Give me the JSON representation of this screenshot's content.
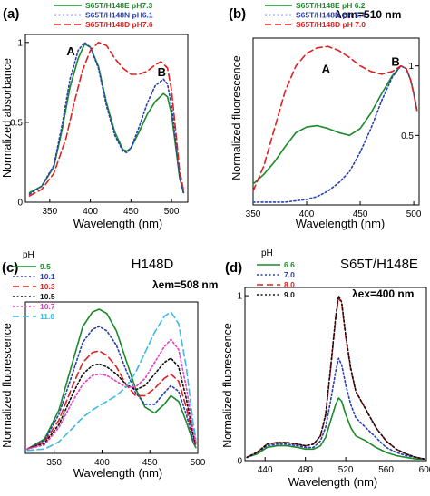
{
  "chart_data": [
    {
      "panel": "(a)",
      "type": "line",
      "ylabel": "Normalized absorbance",
      "xlabel": "Wavelength (nm)",
      "xlim": [
        320,
        520
      ],
      "ylim": [
        0,
        1.05
      ],
      "xticks": [
        350,
        400,
        450,
        500
      ],
      "yticks": [
        0,
        0.5,
        1
      ],
      "ytick_labels": [
        "0",
        "0.5",
        "1"
      ],
      "legend": "top",
      "annotations": [
        {
          "text": "A",
          "x": 376,
          "y": 0.92
        },
        {
          "text": "B",
          "x": 488,
          "y": 0.79
        }
      ],
      "series": [
        {
          "name": "S65T/H148E pH7.3",
          "color": "#1a8a2a",
          "dash": "solid",
          "x": [
            325,
            340,
            355,
            365,
            375,
            385,
            393,
            400,
            410,
            420,
            430,
            440,
            445,
            450,
            460,
            470,
            480,
            490,
            495,
            500,
            505,
            510,
            515
          ],
          "y": [
            0.06,
            0.1,
            0.22,
            0.45,
            0.72,
            0.9,
            0.99,
            0.97,
            0.85,
            0.62,
            0.44,
            0.33,
            0.32,
            0.34,
            0.44,
            0.55,
            0.63,
            0.68,
            0.66,
            0.55,
            0.35,
            0.15,
            0.06
          ]
        },
        {
          "name": "S65T/H148N pH6.1",
          "color": "#2a3fb0",
          "dash": "dot",
          "x": [
            325,
            340,
            355,
            365,
            375,
            385,
            393,
            400,
            410,
            420,
            430,
            440,
            445,
            450,
            460,
            470,
            480,
            490,
            495,
            500,
            505,
            510,
            515
          ],
          "y": [
            0.05,
            0.1,
            0.23,
            0.48,
            0.77,
            0.95,
            1.0,
            0.97,
            0.84,
            0.6,
            0.42,
            0.32,
            0.31,
            0.34,
            0.47,
            0.62,
            0.73,
            0.77,
            0.74,
            0.6,
            0.38,
            0.16,
            0.05
          ]
        },
        {
          "name": "S65T/H148D pH7.6",
          "color": "#e02020",
          "dash": "dash",
          "x": [
            325,
            340,
            355,
            370,
            380,
            390,
            400,
            410,
            420,
            430,
            440,
            450,
            460,
            470,
            480,
            487,
            495,
            500,
            505,
            510,
            515
          ],
          "y": [
            0.04,
            0.08,
            0.18,
            0.4,
            0.62,
            0.82,
            0.95,
            1.0,
            0.98,
            0.9,
            0.84,
            0.8,
            0.8,
            0.82,
            0.86,
            0.88,
            0.84,
            0.7,
            0.45,
            0.2,
            0.07
          ]
        }
      ]
    },
    {
      "panel": "(b)",
      "type": "line",
      "ylabel": "Normalized fluorescence",
      "xlabel": "Wavelength (nm)",
      "xlim": [
        350,
        505
      ],
      "ylim": [
        0,
        1.2
      ],
      "xticks": [
        350,
        400,
        450,
        500
      ],
      "yticks": [
        0.5,
        1
      ],
      "ytick_labels": [
        "0.5",
        "1"
      ],
      "legend": "top",
      "inset_label": "λem=510 nm",
      "annotations": [
        {
          "text": "A",
          "x": 418,
          "y": 0.95
        },
        {
          "text": "B",
          "x": 483,
          "y": 1.0
        }
      ],
      "series": [
        {
          "name": "S65T/H148E pH 6.2",
          "color": "#1a8a2a",
          "dash": "solid",
          "x": [
            350,
            360,
            370,
            380,
            390,
            400,
            410,
            420,
            430,
            440,
            450,
            460,
            470,
            480,
            488,
            493,
            497,
            500,
            503
          ],
          "y": [
            0.15,
            0.22,
            0.31,
            0.42,
            0.52,
            0.56,
            0.57,
            0.55,
            0.52,
            0.5,
            0.55,
            0.66,
            0.8,
            0.93,
            1.0,
            0.98,
            0.9,
            0.8,
            0.68
          ]
        },
        {
          "name": "S65T/H148N pH 5.4",
          "color": "#2a3fb0",
          "dash": "dot",
          "x": [
            350,
            360,
            370,
            380,
            390,
            400,
            410,
            420,
            430,
            440,
            450,
            460,
            470,
            480,
            488,
            493,
            497,
            500,
            503
          ],
          "y": [
            0.02,
            0.02,
            0.02,
            0.02,
            0.03,
            0.04,
            0.06,
            0.1,
            0.16,
            0.24,
            0.38,
            0.55,
            0.75,
            0.92,
            1.0,
            0.98,
            0.9,
            0.8,
            0.68
          ]
        },
        {
          "name": "S65T/H148D pH 7.0",
          "color": "#e02020",
          "dash": "dash",
          "x": [
            350,
            360,
            370,
            380,
            390,
            400,
            410,
            420,
            430,
            440,
            450,
            460,
            470,
            480,
            488,
            493,
            497,
            500,
            503
          ],
          "y": [
            0.1,
            0.28,
            0.55,
            0.82,
            1.0,
            1.09,
            1.13,
            1.14,
            1.11,
            1.06,
            1.0,
            0.96,
            0.94,
            0.96,
            1.0,
            0.98,
            0.9,
            0.8,
            0.68
          ]
        }
      ]
    },
    {
      "panel": "(c)",
      "type": "line",
      "title": "H148D",
      "ylabel": "Normalized fluorescence",
      "xlabel": "Wavelength (nm)",
      "xlim": [
        320,
        500
      ],
      "ylim": [
        0,
        1.05
      ],
      "xticks": [
        350,
        400,
        450,
        500
      ],
      "yticks": [],
      "legend": "top-left",
      "legend_title": "pH",
      "inset_label": "λem=508 nm",
      "series": [
        {
          "name": "9.5",
          "color": "#1a8a2a",
          "dash": "solid",
          "x": [
            322,
            340,
            355,
            370,
            380,
            390,
            397,
            405,
            415,
            425,
            435,
            445,
            455,
            465,
            472,
            480,
            488,
            495,
            498
          ],
          "y": [
            0.03,
            0.1,
            0.3,
            0.65,
            0.88,
            0.98,
            1.0,
            0.97,
            0.85,
            0.65,
            0.45,
            0.32,
            0.28,
            0.34,
            0.4,
            0.36,
            0.22,
            0.08,
            0.04
          ]
        },
        {
          "name": "10.1",
          "color": "#2a3fb0",
          "dash": "dot",
          "x": [
            322,
            340,
            355,
            370,
            380,
            390,
            397,
            405,
            415,
            425,
            435,
            445,
            455,
            465,
            472,
            480,
            488,
            495,
            498
          ],
          "y": [
            0.03,
            0.09,
            0.27,
            0.57,
            0.77,
            0.86,
            0.88,
            0.85,
            0.75,
            0.58,
            0.42,
            0.34,
            0.34,
            0.42,
            0.47,
            0.43,
            0.27,
            0.1,
            0.05
          ]
        },
        {
          "name": "10.3",
          "color": "#e02020",
          "dash": "dash",
          "x": [
            322,
            340,
            355,
            370,
            380,
            390,
            397,
            405,
            415,
            425,
            435,
            445,
            455,
            465,
            472,
            480,
            488,
            495,
            498
          ],
          "y": [
            0.03,
            0.08,
            0.23,
            0.48,
            0.63,
            0.7,
            0.71,
            0.68,
            0.6,
            0.48,
            0.4,
            0.4,
            0.45,
            0.52,
            0.55,
            0.5,
            0.32,
            0.12,
            0.06
          ]
        },
        {
          "name": "10.5",
          "color": "#111111",
          "dash": "dot",
          "x": [
            322,
            340,
            355,
            370,
            380,
            390,
            397,
            405,
            415,
            425,
            435,
            445,
            455,
            465,
            472,
            480,
            488,
            495,
            498
          ],
          "y": [
            0.03,
            0.07,
            0.2,
            0.42,
            0.55,
            0.61,
            0.62,
            0.6,
            0.55,
            0.48,
            0.44,
            0.47,
            0.55,
            0.63,
            0.66,
            0.6,
            0.38,
            0.14,
            0.07
          ]
        },
        {
          "name": "10.7",
          "color": "#e040c0",
          "dash": "dot",
          "x": [
            322,
            340,
            355,
            370,
            380,
            390,
            397,
            405,
            415,
            425,
            435,
            445,
            455,
            465,
            472,
            480,
            488,
            495,
            498
          ],
          "y": [
            0.03,
            0.06,
            0.18,
            0.37,
            0.48,
            0.54,
            0.55,
            0.54,
            0.5,
            0.46,
            0.46,
            0.52,
            0.63,
            0.74,
            0.79,
            0.72,
            0.46,
            0.17,
            0.08
          ]
        },
        {
          "name": "11.0",
          "color": "#40b8e0",
          "dash": "dash",
          "x": [
            322,
            340,
            355,
            370,
            380,
            390,
            397,
            405,
            415,
            425,
            435,
            445,
            455,
            465,
            472,
            480,
            488,
            495,
            498
          ],
          "y": [
            0.02,
            0.03,
            0.08,
            0.18,
            0.25,
            0.3,
            0.33,
            0.36,
            0.4,
            0.46,
            0.56,
            0.7,
            0.84,
            0.95,
            0.98,
            0.9,
            0.6,
            0.22,
            0.1
          ]
        }
      ]
    },
    {
      "panel": "(d)",
      "type": "line",
      "title": "S65T/H148E",
      "ylabel": "Normalized fluorescence",
      "xlabel": "Wavelength (nm)",
      "xlim": [
        420,
        600
      ],
      "ylim": [
        0,
        1.05
      ],
      "xticks": [
        440,
        480,
        520,
        560,
        600
      ],
      "xtick_labels": [
        "440",
        "480",
        "520",
        "560",
        "600"
      ],
      "yticks": [
        0,
        1
      ],
      "ytick_labels": [
        "0",
        "1"
      ],
      "legend": "top-left",
      "legend_title": "pH",
      "inset_label": "λex=400 nm",
      "series": [
        {
          "name": "6.6",
          "color": "#1a8a2a",
          "dash": "solid",
          "x": [
            422,
            432,
            442,
            452,
            462,
            472,
            480,
            488,
            495,
            500,
            505,
            510,
            513,
            516,
            520,
            525,
            530,
            540,
            550,
            560,
            570,
            580,
            590,
            598
          ],
          "y": [
            0.02,
            0.04,
            0.08,
            0.09,
            0.09,
            0.08,
            0.07,
            0.07,
            0.09,
            0.14,
            0.24,
            0.34,
            0.38,
            0.36,
            0.28,
            0.2,
            0.15,
            0.12,
            0.08,
            0.05,
            0.03,
            0.02,
            0.01,
            0.01
          ]
        },
        {
          "name": "7.0",
          "color": "#2a3fb0",
          "dash": "dot",
          "x": [
            422,
            432,
            442,
            452,
            462,
            472,
            480,
            488,
            495,
            500,
            505,
            510,
            513,
            516,
            520,
            525,
            530,
            540,
            550,
            560,
            570,
            580,
            590,
            598
          ],
          "y": [
            0.02,
            0.05,
            0.09,
            0.1,
            0.1,
            0.09,
            0.08,
            0.08,
            0.12,
            0.2,
            0.36,
            0.54,
            0.62,
            0.58,
            0.46,
            0.34,
            0.26,
            0.2,
            0.14,
            0.08,
            0.05,
            0.03,
            0.02,
            0.01
          ]
        },
        {
          "name": "8.0",
          "color": "#e02020",
          "dash": "dash",
          "x": [
            422,
            432,
            442,
            452,
            462,
            472,
            480,
            488,
            495,
            500,
            505,
            510,
            513,
            516,
            520,
            525,
            530,
            540,
            550,
            560,
            570,
            580,
            590,
            598
          ],
          "y": [
            0.02,
            0.05,
            0.1,
            0.11,
            0.11,
            0.1,
            0.09,
            0.1,
            0.15,
            0.27,
            0.55,
            0.86,
            0.99,
            0.95,
            0.75,
            0.55,
            0.42,
            0.31,
            0.2,
            0.12,
            0.07,
            0.04,
            0.02,
            0.01
          ]
        },
        {
          "name": "9.0",
          "color": "#111111",
          "dash": "dot",
          "x": [
            422,
            432,
            442,
            452,
            462,
            472,
            480,
            488,
            495,
            500,
            505,
            510,
            513,
            516,
            520,
            525,
            530,
            540,
            550,
            560,
            570,
            580,
            590,
            598
          ],
          "y": [
            0.02,
            0.05,
            0.1,
            0.11,
            0.11,
            0.1,
            0.09,
            0.1,
            0.15,
            0.28,
            0.56,
            0.87,
            1.0,
            0.96,
            0.76,
            0.56,
            0.42,
            0.31,
            0.2,
            0.12,
            0.07,
            0.04,
            0.02,
            0.01
          ]
        }
      ]
    }
  ],
  "panels": [
    {
      "label": "(a)",
      "title": "",
      "inset": ""
    },
    {
      "label": "(b)",
      "title": "",
      "inset": "λem=510 nm"
    },
    {
      "label": "(c)",
      "title": "H148D",
      "inset": "λem=508 nm"
    },
    {
      "label": "(d)",
      "title": "S65T/H148E",
      "inset": "λex=400 nm"
    }
  ]
}
